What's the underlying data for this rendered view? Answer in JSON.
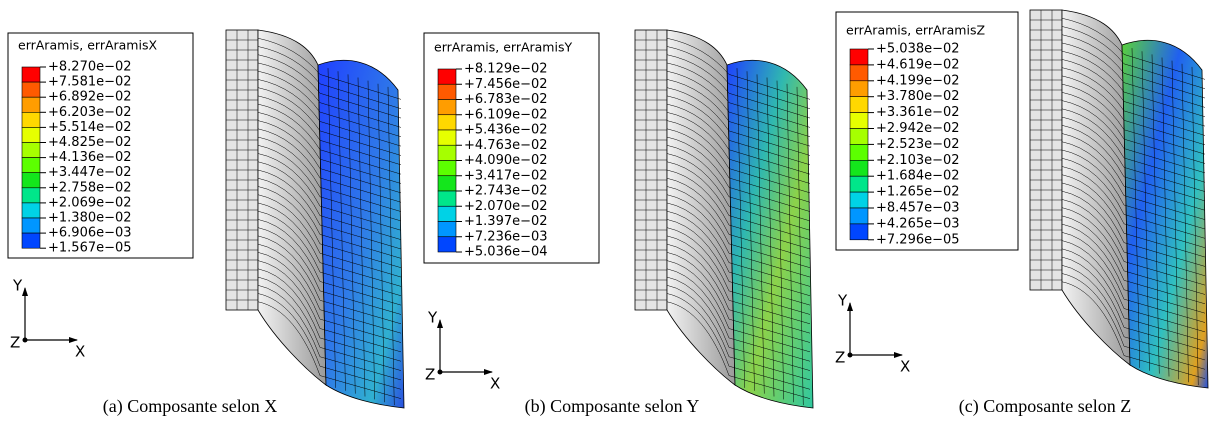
{
  "panels": [
    {
      "legend": {
        "title": "errAramis, errAramisX",
        "values": [
          "+8.270e−02",
          "+7.581e−02",
          "+6.892e−02",
          "+6.203e−02",
          "+5.514e−02",
          "+4.825e−02",
          "+4.136e−02",
          "+3.447e−02",
          "+2.758e−02",
          "+2.069e−02",
          "+1.380e−02",
          "+6.906e−03",
          "+1.567e−05"
        ]
      },
      "axes": {
        "y": "Y",
        "z": "Z",
        "x": "X"
      },
      "caption": "(a) Composante selon X"
    },
    {
      "legend": {
        "title": "errAramis, errAramisY",
        "values": [
          "+8.129e−02",
          "+7.456e−02",
          "+6.783e−02",
          "+6.109e−02",
          "+5.436e−02",
          "+4.763e−02",
          "+4.090e−02",
          "+3.417e−02",
          "+2.743e−02",
          "+2.070e−02",
          "+1.397e−02",
          "+7.236e−03",
          "+5.036e−04"
        ]
      },
      "axes": {
        "y": "Y",
        "z": "Z",
        "x": "X"
      },
      "caption": "(b) Composante selon Y"
    },
    {
      "legend": {
        "title": "errAramis, errAramisZ",
        "values": [
          "+5.038e−02",
          "+4.619e−02",
          "+4.199e−02",
          "+3.780e−02",
          "+3.361e−02",
          "+2.942e−02",
          "+2.523e−02",
          "+2.103e−02",
          "+1.684e−02",
          "+1.265e−02",
          "+8.457e−03",
          "+4.265e−03",
          "+7.296e−05"
        ]
      },
      "axes": {
        "y": "Y",
        "z": "Z",
        "x": "X"
      },
      "caption": "(c) Composante selon Z"
    }
  ],
  "legend_colors": [
    "#ff0000",
    "#ff5a00",
    "#ff9d00",
    "#ffd800",
    "#e6ff00",
    "#a6ff00",
    "#5cff00",
    "#14e61c",
    "#00e68a",
    "#00d2e6",
    "#0096ff",
    "#0046ff"
  ]
}
